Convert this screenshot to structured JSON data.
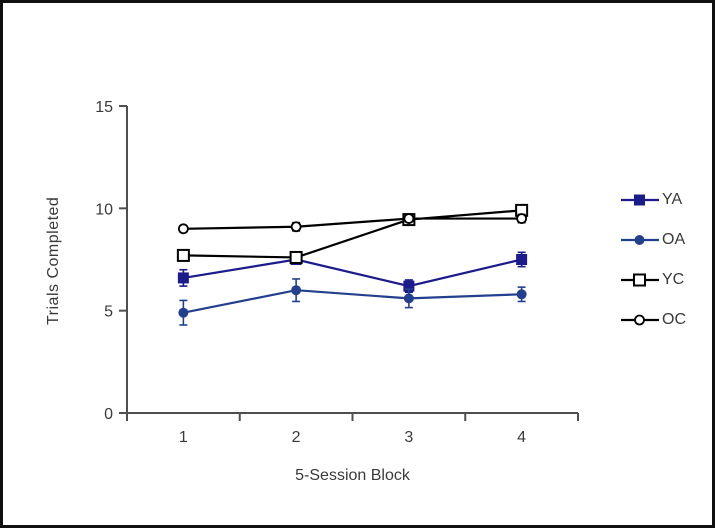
{
  "figure": {
    "background": "#ffffff",
    "border_color": "#101010",
    "axis_color": "#4f4f4f",
    "text_color": "#3a3a3a"
  },
  "chart_data": {
    "type": "line",
    "title": "",
    "xlabel": "5-Session Block",
    "ylabel": "Trials Completed",
    "categories": [
      "1",
      "2",
      "3",
      "4"
    ],
    "ylim": [
      0,
      15
    ],
    "yticks": [
      0,
      5,
      10,
      15
    ],
    "grid": false,
    "legend_position": "right",
    "series": [
      {
        "name": "YA",
        "marker": "filled-square",
        "color": "#1B1B8E",
        "values": [
          6.6,
          7.5,
          6.2,
          7.5
        ],
        "errors": [
          0.4,
          0.2,
          0.3,
          0.35
        ]
      },
      {
        "name": "OA",
        "marker": "filled-circle",
        "color": "#23408F",
        "values": [
          4.9,
          6.0,
          5.6,
          5.8
        ],
        "errors": [
          0.6,
          0.55,
          0.45,
          0.35
        ]
      },
      {
        "name": "YC",
        "marker": "open-square",
        "color": "#000000",
        "values": [
          7.7,
          7.6,
          9.45,
          9.9
        ],
        "errors": [
          0.25,
          0.25,
          0.2,
          0.25
        ]
      },
      {
        "name": "OC",
        "marker": "open-circle",
        "color": "#000000",
        "values": [
          9.0,
          9.1,
          9.5,
          9.5
        ],
        "errors": [
          0.15,
          0.2,
          0.15,
          0.2
        ]
      }
    ]
  }
}
